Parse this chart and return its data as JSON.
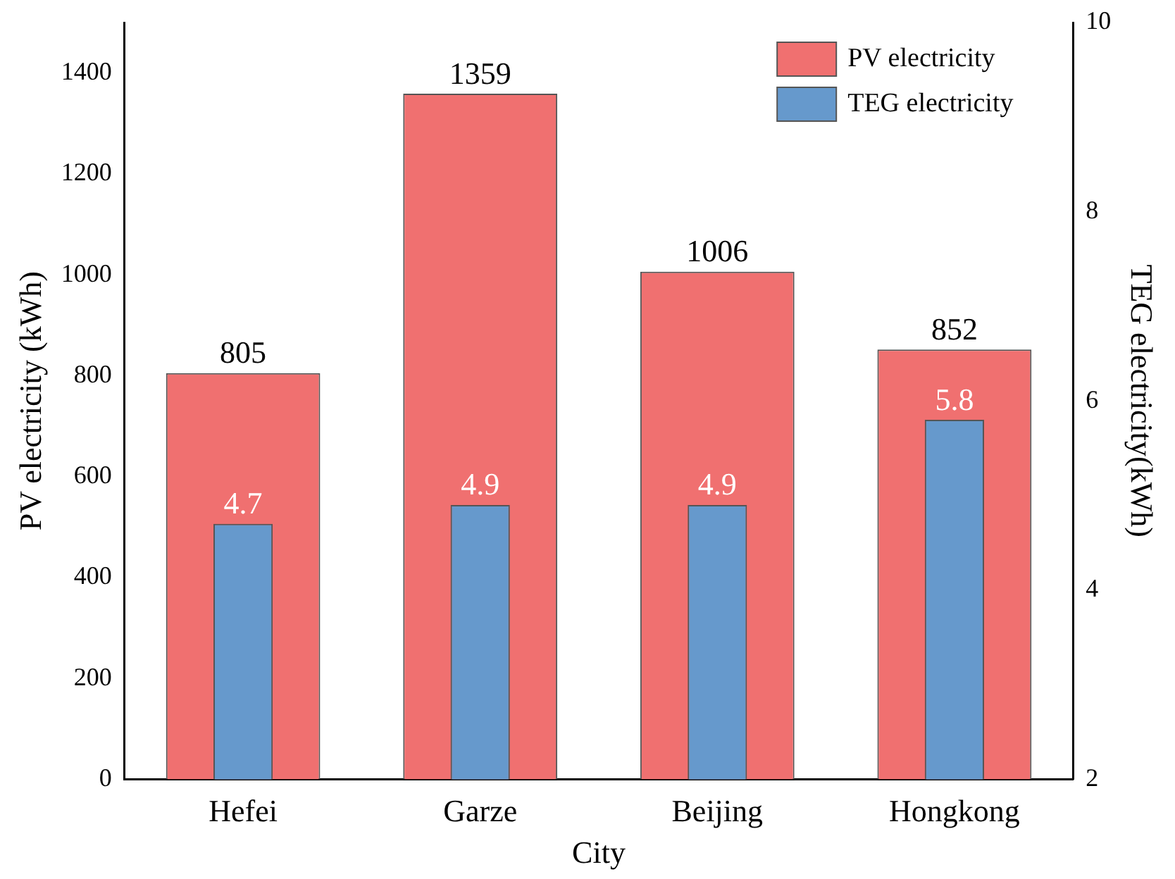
{
  "chart_data": {
    "type": "bar",
    "categories": [
      "Hefei",
      "Garze",
      "Beijing",
      "Hongkong"
    ],
    "series": [
      {
        "name": "PV electricity",
        "color": "#f07070",
        "values": [
          805,
          1359,
          1006,
          852
        ]
      },
      {
        "name": "TEG electricity",
        "color": "#6699cc",
        "values": [
          4.7,
          4.9,
          4.9,
          5.8
        ],
        "axis": "y2"
      }
    ],
    "xlabel": "City",
    "ylabel": "PV electricity (kWh)",
    "y2label": "TEG electricity(kWh)",
    "ylim": [
      0,
      1500
    ],
    "yticks": [
      0,
      200,
      400,
      600,
      800,
      1000,
      1200,
      1400
    ],
    "y2lim": [
      2,
      10
    ],
    "y2ticks": [
      2,
      4,
      6,
      8,
      10
    ],
    "data_labels": true,
    "legend": "top right",
    "grid": false
  }
}
